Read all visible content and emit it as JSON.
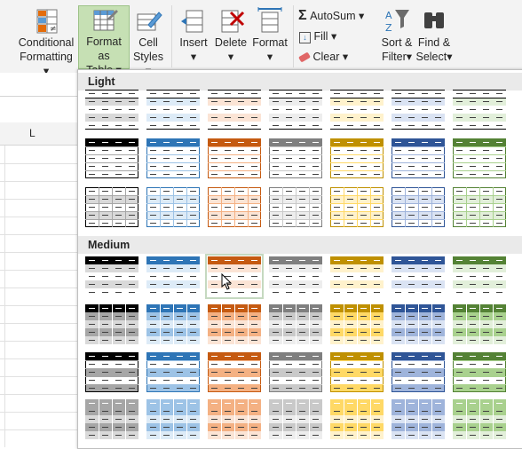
{
  "ribbon": {
    "conditional_formatting": {
      "line1": "Conditional",
      "line2": "Formatting"
    },
    "format_as_table": {
      "line1": "Format as",
      "line2": "Table"
    },
    "cell_styles": {
      "line1": "Cell",
      "line2": "Styles"
    },
    "insert": {
      "label": "Insert"
    },
    "delete": {
      "label": "Delete"
    },
    "format": {
      "label": "Format"
    },
    "autosum": {
      "label": "AutoSum"
    },
    "fill": {
      "label": "Fill"
    },
    "clear": {
      "label": "Clear"
    },
    "sort_filter": {
      "line1": "Sort &",
      "line2": "Filter"
    },
    "find_select": {
      "line1": "Find &",
      "line2": "Select"
    },
    "dropdown_arrow": "▾"
  },
  "sheet": {
    "column_header": "L"
  },
  "gallery": {
    "sections": [
      {
        "title": "Light"
      },
      {
        "title": "Medium"
      }
    ],
    "style_colors": [
      {
        "name": "black",
        "dark": "#000000",
        "mid": "#a6a6a6",
        "light": "#d9d9d9"
      },
      {
        "name": "blue",
        "dark": "#2e75b6",
        "mid": "#9dc3e6",
        "light": "#ddebf7"
      },
      {
        "name": "orange",
        "dark": "#c55a11",
        "mid": "#f4b183",
        "light": "#fbe4d5"
      },
      {
        "name": "gray",
        "dark": "#7f7f7f",
        "mid": "#c9c9c9",
        "light": "#ededed"
      },
      {
        "name": "gold",
        "dark": "#bf9000",
        "mid": "#ffd966",
        "light": "#fff2cc"
      },
      {
        "name": "navy",
        "dark": "#2f5597",
        "mid": "#9fb4db",
        "light": "#dae3f3"
      },
      {
        "name": "green",
        "dark": "#548235",
        "mid": "#a9d18e",
        "light": "#e2efda"
      }
    ]
  }
}
